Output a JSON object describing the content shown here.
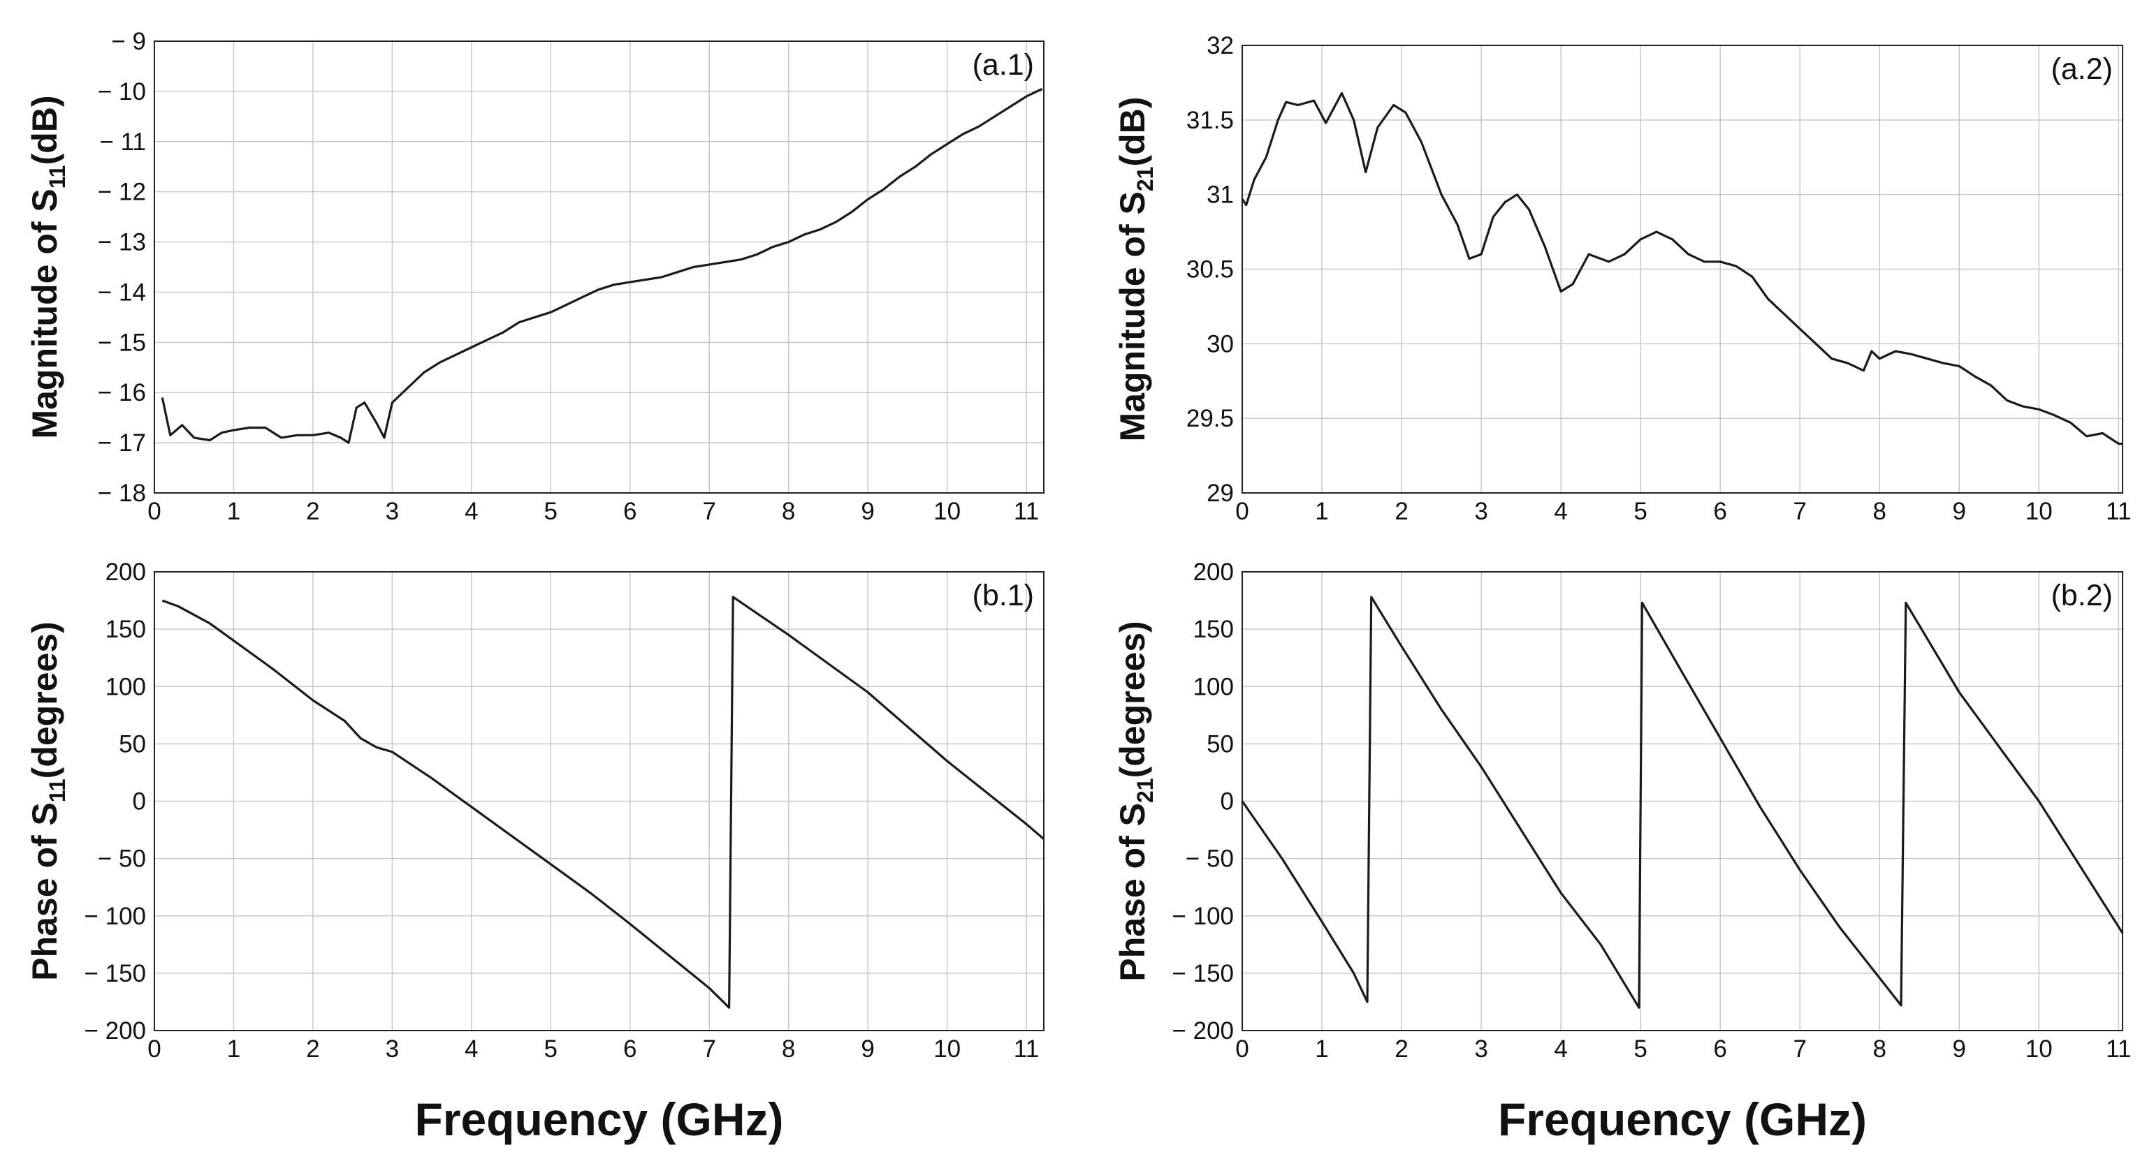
{
  "chart_data": [
    {
      "type": "line",
      "annotation": "(a.1)",
      "ylabel": [
        "Magnitude of S",
        "11",
        "(dB)"
      ],
      "color": "#1a1a1a",
      "grid": true,
      "xlim": [
        0,
        11.22
      ],
      "ylim": [
        -18,
        -9
      ],
      "xticks": [
        0,
        1,
        2,
        3,
        4,
        5,
        6,
        7,
        8,
        9,
        10,
        11
      ],
      "yticks": [
        {
          "value": -18,
          "label": "− 18"
        },
        {
          "value": -17,
          "label": "− 17"
        },
        {
          "value": -16,
          "label": "− 16"
        },
        {
          "value": -15,
          "label": "− 15"
        },
        {
          "value": -14,
          "label": "− 14"
        },
        {
          "value": -13,
          "label": "− 13"
        },
        {
          "value": -12,
          "label": "− 12"
        },
        {
          "value": -11,
          "label": "− 11"
        },
        {
          "value": -10,
          "label": "− 10"
        },
        {
          "value": -9,
          "label": "− 9"
        }
      ],
      "x": [
        0.1,
        0.2,
        0.35,
        0.5,
        0.7,
        0.85,
        1.0,
        1.2,
        1.4,
        1.6,
        1.8,
        2.0,
        2.2,
        2.35,
        2.45,
        2.55,
        2.65,
        2.8,
        2.9,
        3.0,
        3.2,
        3.4,
        3.6,
        3.8,
        4.0,
        4.2,
        4.4,
        4.6,
        4.8,
        5.0,
        5.2,
        5.4,
        5.6,
        5.8,
        6.0,
        6.2,
        6.4,
        6.6,
        6.8,
        7.0,
        7.2,
        7.4,
        7.6,
        7.8,
        8.0,
        8.2,
        8.4,
        8.6,
        8.8,
        9.0,
        9.2,
        9.4,
        9.6,
        9.8,
        10.0,
        10.2,
        10.4,
        10.6,
        10.8,
        11.0,
        11.2
      ],
      "values": [
        -16.1,
        -16.85,
        -16.65,
        -16.9,
        -16.95,
        -16.8,
        -16.75,
        -16.7,
        -16.7,
        -16.9,
        -16.85,
        -16.85,
        -16.8,
        -16.9,
        -17.0,
        -16.3,
        -16.2,
        -16.6,
        -16.9,
        -16.2,
        -15.9,
        -15.6,
        -15.4,
        -15.25,
        -15.1,
        -14.95,
        -14.8,
        -14.6,
        -14.5,
        -14.4,
        -14.25,
        -14.1,
        -13.95,
        -13.85,
        -13.8,
        -13.75,
        -13.7,
        -13.6,
        -13.5,
        -13.45,
        -13.4,
        -13.35,
        -13.25,
        -13.1,
        -13.0,
        -12.85,
        -12.75,
        -12.6,
        -12.4,
        -12.15,
        -11.95,
        -11.7,
        -11.5,
        -11.25,
        -11.05,
        -10.85,
        -10.7,
        -10.5,
        -10.3,
        -10.1,
        -9.95
      ]
    },
    {
      "type": "line",
      "annotation": "(b.1)",
      "ylabel": [
        "Phase of S",
        "11",
        "(degrees)"
      ],
      "xlabel": "Frequency (GHz)",
      "color": "#1a1a1a",
      "grid": true,
      "xlim": [
        0,
        11.22
      ],
      "ylim": [
        -200,
        200
      ],
      "xticks": [
        0,
        1,
        2,
        3,
        4,
        5,
        6,
        7,
        8,
        9,
        10,
        11
      ],
      "yticks": [
        {
          "value": -200,
          "label": "− 200"
        },
        {
          "value": -150,
          "label": "− 150"
        },
        {
          "value": -100,
          "label": "− 100"
        },
        {
          "value": -50,
          "label": "− 50"
        },
        0,
        50,
        100,
        150,
        200
      ],
      "x": [
        0.1,
        0.3,
        0.7,
        1,
        1.5,
        2,
        2.4,
        2.6,
        2.8,
        3.0,
        3.5,
        4,
        4.5,
        5,
        5.5,
        6,
        6.5,
        7,
        7.25,
        7.3,
        8,
        9,
        10,
        11,
        11.22
      ],
      "values": [
        175,
        170,
        155,
        140,
        115,
        88,
        70,
        55,
        47,
        43,
        20,
        -5,
        -30,
        -55,
        -80,
        -107,
        -135,
        -163,
        -180,
        178,
        145,
        95,
        35,
        -20,
        -33
      ]
    },
    {
      "type": "line",
      "annotation": "(a.2)",
      "ylabel": [
        "Magnitude of S",
        "21",
        "(dB)"
      ],
      "color": "#1a1a1a",
      "grid": true,
      "xlim": [
        0,
        11.05
      ],
      "ylim": [
        29,
        32
      ],
      "xticks": [
        0,
        1,
        2,
        3,
        4,
        5,
        6,
        7,
        8,
        9,
        10,
        11
      ],
      "yticks": [
        29,
        29.5,
        30,
        30.5,
        31,
        31.5,
        32
      ],
      "x": [
        0,
        0.05,
        0.15,
        0.3,
        0.45,
        0.55,
        0.7,
        0.9,
        1.05,
        1.25,
        1.4,
        1.55,
        1.7,
        1.9,
        2.05,
        2.25,
        2.5,
        2.7,
        2.85,
        3.0,
        3.15,
        3.3,
        3.45,
        3.6,
        3.8,
        4.0,
        4.15,
        4.35,
        4.6,
        4.8,
        5.0,
        5.2,
        5.4,
        5.6,
        5.8,
        6.0,
        6.2,
        6.4,
        6.6,
        6.8,
        7.0,
        7.2,
        7.4,
        7.6,
        7.8,
        7.9,
        8.0,
        8.2,
        8.4,
        8.6,
        8.8,
        9.0,
        9.2,
        9.4,
        9.6,
        9.8,
        10.0,
        10.2,
        10.4,
        10.6,
        10.8,
        11.0,
        11.05
      ],
      "values": [
        30.97,
        30.93,
        31.1,
        31.25,
        31.5,
        31.62,
        31.6,
        31.63,
        31.48,
        31.68,
        31.5,
        31.15,
        31.45,
        31.6,
        31.55,
        31.35,
        31.0,
        30.8,
        30.57,
        30.6,
        30.85,
        30.95,
        31.0,
        30.9,
        30.65,
        30.35,
        30.4,
        30.6,
        30.55,
        30.6,
        30.7,
        30.75,
        30.7,
        30.6,
        30.55,
        30.55,
        30.52,
        30.45,
        30.3,
        30.2,
        30.1,
        30.0,
        29.9,
        29.87,
        29.82,
        29.95,
        29.9,
        29.95,
        29.93,
        29.9,
        29.87,
        29.85,
        29.78,
        29.72,
        29.62,
        29.58,
        29.56,
        29.52,
        29.47,
        29.38,
        29.4,
        29.33,
        29.33
      ]
    },
    {
      "type": "line",
      "annotation": "(b.2)",
      "ylabel": [
        "Phase of S",
        "21",
        "(degrees)"
      ],
      "xlabel": "Frequency (GHz)",
      "color": "#1a1a1a",
      "grid": true,
      "xlim": [
        0,
        11.05
      ],
      "ylim": [
        -200,
        200
      ],
      "xticks": [
        0,
        1,
        2,
        3,
        4,
        5,
        6,
        7,
        8,
        9,
        10,
        11
      ],
      "yticks": [
        {
          "value": -200,
          "label": "− 200"
        },
        {
          "value": -150,
          "label": "− 150"
        },
        {
          "value": -100,
          "label": "− 100"
        },
        {
          "value": -50,
          "label": "− 50"
        },
        0,
        50,
        100,
        150,
        200
      ],
      "x": [
        0,
        0.5,
        1,
        1.4,
        1.57,
        1.62,
        2,
        2.5,
        3,
        3.5,
        4,
        4.5,
        4.98,
        5.02,
        5.5,
        6,
        6.5,
        7,
        7.5,
        8.27,
        8.33,
        9,
        10,
        11.05
      ],
      "values": [
        0,
        -50,
        -105,
        -150,
        -175,
        178,
        135,
        80,
        30,
        -25,
        -80,
        -125,
        -180,
        173,
        115,
        55,
        -5,
        -60,
        -110,
        -178,
        173,
        95,
        0,
        -115
      ]
    }
  ]
}
